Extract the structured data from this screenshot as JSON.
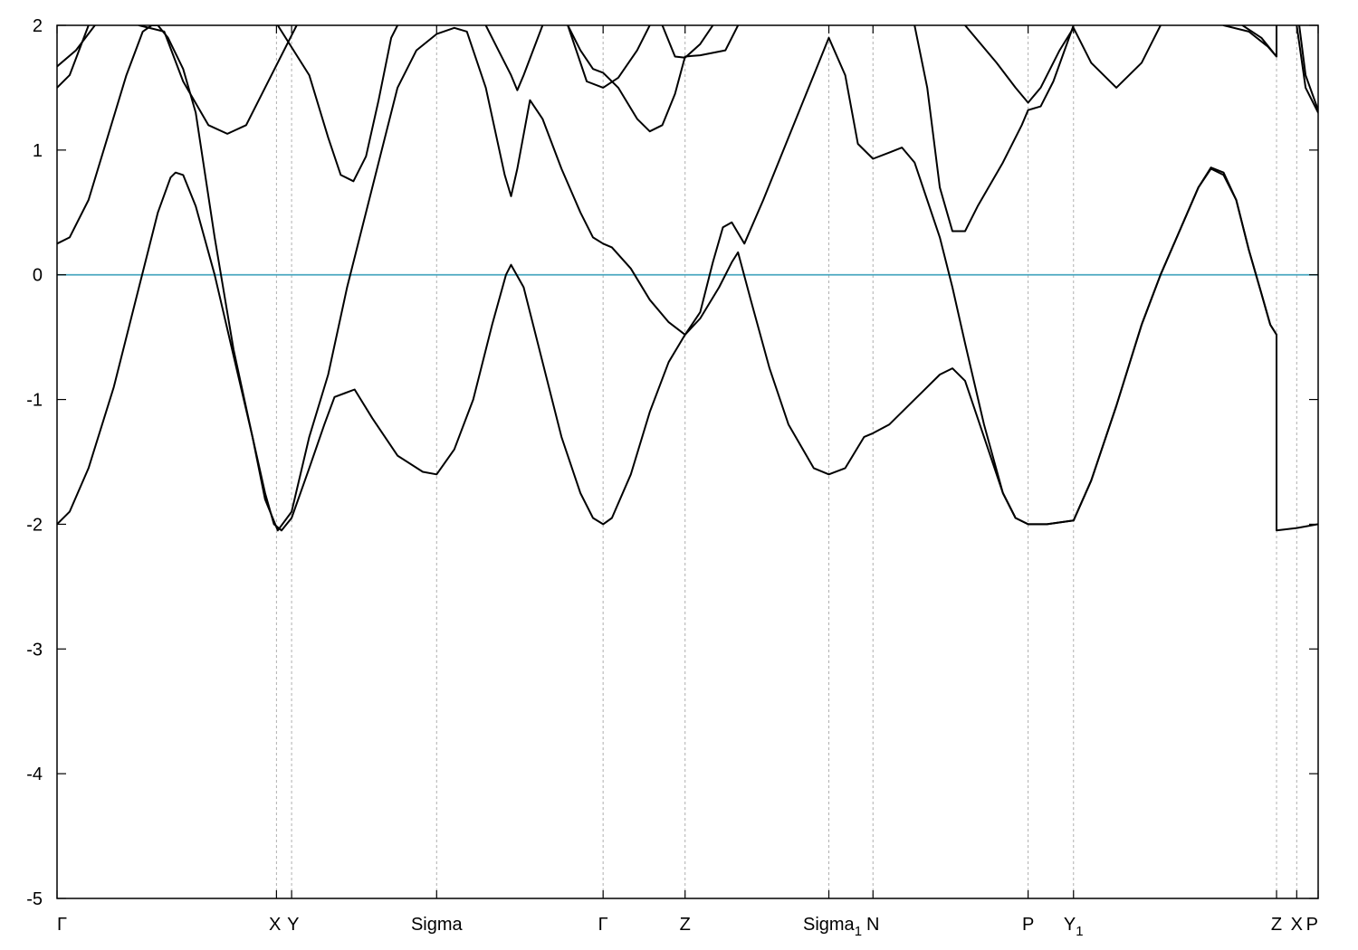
{
  "chart_data": {
    "type": "line",
    "title": "",
    "xlabel": "",
    "ylabel": "",
    "ylim": [
      -5,
      2
    ],
    "yticks": [
      -5,
      -4,
      -3,
      -2,
      -1,
      0,
      1,
      2
    ],
    "ytick_labels": [
      "-5",
      "-4",
      "-3",
      "-2",
      "-1",
      "0",
      "1",
      "2"
    ],
    "xlim": [
      0,
      1
    ],
    "kpoints": [
      {
        "name": "Γ",
        "sub": "",
        "x": 0.0
      },
      {
        "name": "X",
        "sub": "",
        "x": 0.174
      },
      {
        "name": "Y",
        "sub": "",
        "x": 0.186
      },
      {
        "name": "Sigma",
        "sub": "",
        "x": 0.301
      },
      {
        "name": "Γ",
        "sub": "",
        "x": 0.433
      },
      {
        "name": "Z",
        "sub": "",
        "x": 0.498
      },
      {
        "name": "Sigma",
        "sub": "1",
        "x": 0.612
      },
      {
        "name": "N",
        "sub": "",
        "x": 0.647
      },
      {
        "name": "P",
        "sub": "",
        "x": 0.77
      },
      {
        "name": "Y",
        "sub": "1",
        "x": 0.806
      },
      {
        "name": "Z",
        "sub": "",
        "x": 0.967
      },
      {
        "name": "X",
        "sub": "",
        "x": 0.983
      },
      {
        "name": "P",
        "sub": "",
        "x": 1.0
      }
    ],
    "fermi_level": 0,
    "grid": false,
    "series": [
      {
        "values": [
          [
            0.0,
            -2.0
          ],
          [
            0.01,
            -1.9
          ],
          [
            0.025,
            -1.55
          ],
          [
            0.045,
            -0.9
          ],
          [
            0.065,
            -0.1
          ],
          [
            0.08,
            0.5
          ],
          [
            0.09,
            0.78
          ],
          [
            0.094,
            0.82
          ],
          [
            0.1,
            0.8
          ],
          [
            0.11,
            0.55
          ],
          [
            0.125,
            0.0
          ],
          [
            0.14,
            -0.65
          ],
          [
            0.155,
            -1.3
          ],
          [
            0.165,
            -1.75
          ],
          [
            0.172,
            -2.0
          ],
          [
            0.178,
            -2.05
          ],
          [
            0.186,
            -1.95
          ],
          [
            0.2,
            -1.55
          ],
          [
            0.212,
            -1.2
          ],
          [
            0.22,
            -0.98
          ],
          [
            0.236,
            -0.92
          ],
          [
            0.25,
            -1.15
          ],
          [
            0.27,
            -1.45
          ],
          [
            0.29,
            -1.58
          ],
          [
            0.301,
            -1.6
          ],
          [
            0.315,
            -1.4
          ],
          [
            0.33,
            -1.0
          ],
          [
            0.345,
            -0.4
          ],
          [
            0.356,
            0.0
          ],
          [
            0.36,
            0.08
          ],
          [
            0.37,
            -0.1
          ],
          [
            0.385,
            -0.7
          ],
          [
            0.4,
            -1.3
          ],
          [
            0.415,
            -1.75
          ],
          [
            0.425,
            -1.95
          ],
          [
            0.433,
            -2.0
          ],
          [
            0.44,
            -1.95
          ],
          [
            0.455,
            -1.6
          ],
          [
            0.47,
            -1.1
          ],
          [
            0.485,
            -0.7
          ],
          [
            0.498,
            -0.48
          ],
          [
            0.51,
            -0.35
          ],
          [
            0.525,
            -0.1
          ],
          [
            0.535,
            0.1
          ],
          [
            0.54,
            0.18
          ],
          [
            0.55,
            -0.2
          ],
          [
            0.565,
            -0.75
          ],
          [
            0.58,
            -1.2
          ],
          [
            0.6,
            -1.55
          ],
          [
            0.612,
            -1.6
          ],
          [
            0.625,
            -1.55
          ],
          [
            0.64,
            -1.3
          ],
          [
            0.647,
            -1.27
          ],
          [
            0.66,
            -1.2
          ],
          [
            0.68,
            -1.0
          ],
          [
            0.7,
            -0.8
          ],
          [
            0.71,
            -0.75
          ],
          [
            0.72,
            -0.85
          ],
          [
            0.735,
            -1.3
          ],
          [
            0.75,
            -1.75
          ],
          [
            0.76,
            -1.95
          ],
          [
            0.77,
            -2.0
          ],
          [
            0.785,
            -2.0
          ],
          [
            0.806,
            -1.97
          ],
          [
            0.82,
            -1.65
          ],
          [
            0.84,
            -1.05
          ],
          [
            0.86,
            -0.4
          ],
          [
            0.875,
            0.0
          ],
          [
            0.89,
            0.35
          ],
          [
            0.905,
            0.7
          ],
          [
            0.915,
            0.85
          ],
          [
            0.925,
            0.8
          ],
          [
            0.935,
            0.6
          ],
          [
            0.945,
            0.2
          ],
          [
            0.955,
            -0.15
          ],
          [
            0.962,
            -0.4
          ],
          [
            0.967,
            -0.48
          ],
          [
            0.967,
            -2.05
          ],
          [
            0.983,
            -2.03
          ],
          [
            1.0,
            -2.0
          ]
        ]
      },
      {
        "values": [
          [
            0.0,
            0.25
          ],
          [
            0.01,
            0.3
          ],
          [
            0.025,
            0.6
          ],
          [
            0.04,
            1.1
          ],
          [
            0.055,
            1.6
          ],
          [
            0.068,
            1.95
          ],
          [
            0.075,
            2.0
          ],
          [
            0.08,
            2.0
          ],
          [
            0.088,
            1.9
          ],
          [
            0.1,
            1.65
          ],
          [
            0.11,
            1.3
          ],
          [
            0.125,
            0.3
          ],
          [
            0.14,
            -0.6
          ],
          [
            0.155,
            -1.3
          ],
          [
            0.165,
            -1.8
          ],
          [
            0.175,
            -2.05
          ],
          [
            0.186,
            -1.9
          ],
          [
            0.2,
            -1.3
          ],
          [
            0.215,
            -0.8
          ],
          [
            0.23,
            -0.1
          ],
          [
            0.24,
            0.3
          ],
          [
            0.255,
            0.9
          ],
          [
            0.27,
            1.5
          ],
          [
            0.285,
            1.8
          ],
          [
            0.301,
            1.93
          ],
          [
            0.315,
            1.98
          ],
          [
            0.325,
            1.95
          ],
          [
            0.34,
            1.5
          ],
          [
            0.355,
            0.8
          ],
          [
            0.36,
            0.63
          ],
          [
            0.365,
            0.85
          ],
          [
            0.375,
            1.4
          ],
          [
            0.385,
            1.25
          ],
          [
            0.4,
            0.85
          ],
          [
            0.415,
            0.5
          ],
          [
            0.425,
            0.3
          ],
          [
            0.433,
            0.25
          ],
          [
            0.44,
            0.22
          ],
          [
            0.455,
            0.05
          ],
          [
            0.47,
            -0.2
          ],
          [
            0.485,
            -0.38
          ],
          [
            0.498,
            -0.48
          ],
          [
            0.51,
            -0.3
          ],
          [
            0.52,
            0.1
          ],
          [
            0.528,
            0.38
          ],
          [
            0.535,
            0.42
          ],
          [
            0.545,
            0.25
          ],
          [
            0.56,
            0.6
          ],
          [
            0.58,
            1.1
          ],
          [
            0.6,
            1.6
          ],
          [
            0.612,
            1.9
          ],
          [
            0.625,
            1.6
          ],
          [
            0.635,
            1.05
          ],
          [
            0.647,
            0.93
          ],
          [
            0.66,
            0.98
          ],
          [
            0.67,
            1.02
          ],
          [
            0.68,
            0.9
          ],
          [
            0.7,
            0.3
          ],
          [
            0.71,
            -0.1
          ],
          [
            0.72,
            -0.55
          ],
          [
            0.735,
            -1.2
          ],
          [
            0.75,
            -1.75
          ],
          [
            0.76,
            -1.95
          ],
          [
            0.77,
            -2.0
          ],
          [
            0.785,
            -2.0
          ],
          [
            0.806,
            -1.97
          ],
          [
            0.82,
            -1.65
          ],
          [
            0.84,
            -1.05
          ],
          [
            0.86,
            -0.4
          ],
          [
            0.875,
            0.0
          ],
          [
            0.89,
            0.35
          ],
          [
            0.905,
            0.7
          ],
          [
            0.915,
            0.86
          ],
          [
            0.925,
            0.82
          ],
          [
            0.935,
            0.6
          ],
          [
            0.945,
            0.2
          ],
          [
            0.955,
            -0.15
          ],
          [
            0.962,
            -0.4
          ],
          [
            0.967,
            -0.48
          ]
        ]
      },
      {
        "values": [
          [
            0.0,
            1.5
          ],
          [
            0.01,
            1.6
          ],
          [
            0.025,
            2.0
          ]
        ]
      },
      {
        "values": [
          [
            0.0,
            1.67
          ],
          [
            0.015,
            1.8
          ],
          [
            0.03,
            2.0
          ]
        ]
      },
      {
        "values": [
          [
            0.065,
            2.0
          ],
          [
            0.085,
            1.95
          ],
          [
            0.1,
            1.55
          ],
          [
            0.12,
            1.2
          ],
          [
            0.135,
            1.13
          ],
          [
            0.15,
            1.2
          ],
          [
            0.165,
            1.5
          ],
          [
            0.185,
            1.9
          ],
          [
            0.19,
            2.0
          ]
        ]
      },
      {
        "values": [
          [
            0.175,
            2.0
          ],
          [
            0.2,
            1.6
          ],
          [
            0.215,
            1.1
          ],
          [
            0.225,
            0.8
          ],
          [
            0.235,
            0.75
          ],
          [
            0.245,
            0.95
          ],
          [
            0.255,
            1.4
          ],
          [
            0.265,
            1.9
          ],
          [
            0.27,
            2.0
          ]
        ]
      },
      {
        "values": [
          [
            0.34,
            2.0
          ],
          [
            0.35,
            1.8
          ],
          [
            0.36,
            1.6
          ],
          [
            0.365,
            1.48
          ],
          [
            0.37,
            1.6
          ],
          [
            0.385,
            2.0
          ]
        ]
      },
      {
        "values": [
          [
            0.405,
            2.0
          ],
          [
            0.415,
            1.8
          ],
          [
            0.425,
            1.65
          ],
          [
            0.433,
            1.62
          ],
          [
            0.445,
            1.5
          ],
          [
            0.46,
            1.25
          ],
          [
            0.47,
            1.15
          ],
          [
            0.48,
            1.2
          ],
          [
            0.49,
            1.45
          ],
          [
            0.498,
            1.75
          ],
          [
            0.51,
            1.76
          ],
          [
            0.53,
            1.8
          ],
          [
            0.54,
            2.0
          ]
        ]
      },
      {
        "values": [
          [
            0.405,
            2.0
          ],
          [
            0.42,
            1.55
          ],
          [
            0.433,
            1.5
          ],
          [
            0.445,
            1.58
          ],
          [
            0.46,
            1.8
          ],
          [
            0.47,
            2.0
          ]
        ]
      },
      {
        "values": [
          [
            0.48,
            2.0
          ],
          [
            0.49,
            1.75
          ],
          [
            0.498,
            1.74
          ],
          [
            0.51,
            1.85
          ],
          [
            0.52,
            2.0
          ]
        ]
      },
      {
        "values": [
          [
            0.68,
            2.0
          ],
          [
            0.69,
            1.5
          ],
          [
            0.7,
            0.7
          ],
          [
            0.71,
            0.35
          ],
          [
            0.72,
            0.35
          ],
          [
            0.73,
            0.55
          ],
          [
            0.75,
            0.9
          ],
          [
            0.765,
            1.2
          ],
          [
            0.77,
            1.32
          ],
          [
            0.78,
            1.35
          ],
          [
            0.79,
            1.55
          ],
          [
            0.806,
            2.0
          ]
        ]
      },
      {
        "values": [
          [
            0.72,
            2.0
          ],
          [
            0.745,
            1.7
          ],
          [
            0.76,
            1.5
          ],
          [
            0.77,
            1.38
          ],
          [
            0.78,
            1.5
          ],
          [
            0.795,
            1.8
          ],
          [
            0.806,
            1.98
          ],
          [
            0.82,
            1.7
          ],
          [
            0.84,
            1.5
          ],
          [
            0.86,
            1.7
          ],
          [
            0.875,
            2.0
          ]
        ]
      },
      {
        "values": [
          [
            0.94,
            2.0
          ],
          [
            0.955,
            1.9
          ],
          [
            0.967,
            1.75
          ],
          [
            0.967,
            2.0
          ]
        ]
      },
      {
        "values": [
          [
            0.925,
            2.0
          ],
          [
            0.945,
            1.95
          ],
          [
            0.96,
            1.83
          ],
          [
            0.967,
            1.75
          ]
        ]
      },
      {
        "values": [
          [
            0.985,
            2.0
          ],
          [
            0.99,
            1.6
          ],
          [
            1.0,
            1.32
          ]
        ]
      },
      {
        "values": [
          [
            0.983,
            2.0
          ],
          [
            0.99,
            1.5
          ],
          [
            1.0,
            1.3
          ]
        ]
      }
    ]
  }
}
